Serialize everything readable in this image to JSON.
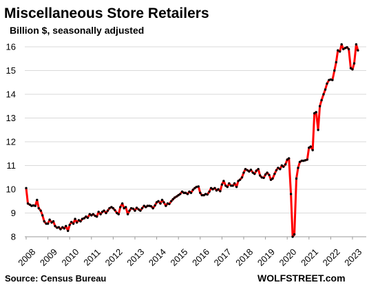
{
  "chart_data": {
    "type": "line",
    "title": "Miscellaneous  Store Retailers",
    "subtitle": "Billion $, seasonally adjusted",
    "source": "Source: Census Bureau",
    "brand": "WOLFSTREET.com",
    "ylim": [
      8,
      16.5
    ],
    "xlim": [
      2008,
      2023.3
    ],
    "yticks": [
      8,
      9,
      10,
      11,
      12,
      13,
      14,
      15,
      16
    ],
    "xticks": [
      "2008",
      "2009",
      "2010",
      "2011",
      "2012",
      "2013",
      "2014",
      "2015",
      "2016",
      "2017",
      "2018",
      "2019",
      "2020",
      "2021",
      "2022",
      "2023"
    ],
    "grid": "horizontal",
    "line_color": "#ff0000",
    "marker_color": "#000000",
    "series": [
      {
        "points": [
          [
            2008.0,
            10.05
          ],
          [
            2008.08,
            9.4
          ],
          [
            2008.17,
            9.35
          ],
          [
            2008.25,
            9.3
          ],
          [
            2008.33,
            9.32
          ],
          [
            2008.42,
            9.3
          ],
          [
            2008.5,
            9.55
          ],
          [
            2008.58,
            9.2
          ],
          [
            2008.67,
            9.1
          ],
          [
            2008.75,
            8.9
          ],
          [
            2008.83,
            8.65
          ],
          [
            2008.92,
            8.55
          ],
          [
            2009.0,
            8.55
          ],
          [
            2009.08,
            8.72
          ],
          [
            2009.17,
            8.6
          ],
          [
            2009.25,
            8.65
          ],
          [
            2009.33,
            8.45
          ],
          [
            2009.42,
            8.38
          ],
          [
            2009.5,
            8.4
          ],
          [
            2009.58,
            8.32
          ],
          [
            2009.67,
            8.4
          ],
          [
            2009.75,
            8.35
          ],
          [
            2009.83,
            8.45
          ],
          [
            2009.92,
            8.25
          ],
          [
            2010.0,
            8.5
          ],
          [
            2010.08,
            8.62
          ],
          [
            2010.17,
            8.55
          ],
          [
            2010.25,
            8.75
          ],
          [
            2010.33,
            8.6
          ],
          [
            2010.42,
            8.7
          ],
          [
            2010.5,
            8.65
          ],
          [
            2010.58,
            8.75
          ],
          [
            2010.67,
            8.78
          ],
          [
            2010.75,
            8.85
          ],
          [
            2010.83,
            8.8
          ],
          [
            2010.92,
            8.95
          ],
          [
            2011.0,
            8.9
          ],
          [
            2011.08,
            8.95
          ],
          [
            2011.17,
            8.88
          ],
          [
            2011.25,
            8.85
          ],
          [
            2011.33,
            9.05
          ],
          [
            2011.42,
            8.95
          ],
          [
            2011.5,
            9.05
          ],
          [
            2011.58,
            9.1
          ],
          [
            2011.67,
            9.0
          ],
          [
            2011.75,
            9.1
          ],
          [
            2011.83,
            9.2
          ],
          [
            2011.92,
            9.25
          ],
          [
            2012.0,
            9.2
          ],
          [
            2012.08,
            9.12
          ],
          [
            2012.17,
            9.0
          ],
          [
            2012.25,
            8.95
          ],
          [
            2012.33,
            9.25
          ],
          [
            2012.42,
            9.4
          ],
          [
            2012.5,
            9.2
          ],
          [
            2012.58,
            9.25
          ],
          [
            2012.67,
            8.95
          ],
          [
            2012.75,
            9.1
          ],
          [
            2012.83,
            9.2
          ],
          [
            2012.92,
            9.18
          ],
          [
            2013.0,
            9.1
          ],
          [
            2013.08,
            9.22
          ],
          [
            2013.17,
            9.15
          ],
          [
            2013.25,
            9.1
          ],
          [
            2013.33,
            9.2
          ],
          [
            2013.42,
            9.3
          ],
          [
            2013.5,
            9.25
          ],
          [
            2013.58,
            9.3
          ],
          [
            2013.67,
            9.3
          ],
          [
            2013.75,
            9.28
          ],
          [
            2013.83,
            9.2
          ],
          [
            2013.92,
            9.32
          ],
          [
            2014.0,
            9.45
          ],
          [
            2014.08,
            9.5
          ],
          [
            2014.17,
            9.4
          ],
          [
            2014.25,
            9.55
          ],
          [
            2014.33,
            9.45
          ],
          [
            2014.42,
            9.3
          ],
          [
            2014.5,
            9.4
          ],
          [
            2014.58,
            9.38
          ],
          [
            2014.67,
            9.5
          ],
          [
            2014.75,
            9.58
          ],
          [
            2014.83,
            9.65
          ],
          [
            2014.92,
            9.7
          ],
          [
            2015.0,
            9.75
          ],
          [
            2015.08,
            9.8
          ],
          [
            2015.17,
            9.9
          ],
          [
            2015.25,
            9.85
          ],
          [
            2015.33,
            9.85
          ],
          [
            2015.42,
            9.8
          ],
          [
            2015.5,
            9.9
          ],
          [
            2015.58,
            9.85
          ],
          [
            2015.67,
            9.98
          ],
          [
            2015.75,
            10.05
          ],
          [
            2015.83,
            10.1
          ],
          [
            2015.92,
            10.12
          ],
          [
            2016.0,
            9.85
          ],
          [
            2016.08,
            9.75
          ],
          [
            2016.17,
            9.75
          ],
          [
            2016.25,
            9.8
          ],
          [
            2016.33,
            9.78
          ],
          [
            2016.42,
            9.9
          ],
          [
            2016.5,
            10.05
          ],
          [
            2016.58,
            10.0
          ],
          [
            2016.67,
            10.05
          ],
          [
            2016.75,
            9.95
          ],
          [
            2016.83,
            10.0
          ],
          [
            2016.92,
            9.92
          ],
          [
            2017.0,
            10.2
          ],
          [
            2017.08,
            10.35
          ],
          [
            2017.17,
            10.15
          ],
          [
            2017.25,
            10.1
          ],
          [
            2017.33,
            10.25
          ],
          [
            2017.42,
            10.15
          ],
          [
            2017.5,
            10.15
          ],
          [
            2017.58,
            10.25
          ],
          [
            2017.67,
            10.1
          ],
          [
            2017.75,
            10.35
          ],
          [
            2017.83,
            10.4
          ],
          [
            2017.92,
            10.5
          ],
          [
            2018.0,
            10.7
          ],
          [
            2018.08,
            10.85
          ],
          [
            2018.17,
            10.8
          ],
          [
            2018.25,
            10.75
          ],
          [
            2018.33,
            10.82
          ],
          [
            2018.42,
            10.7
          ],
          [
            2018.5,
            10.65
          ],
          [
            2018.58,
            10.78
          ],
          [
            2018.67,
            10.85
          ],
          [
            2018.75,
            10.58
          ],
          [
            2018.83,
            10.5
          ],
          [
            2018.92,
            10.48
          ],
          [
            2019.0,
            10.62
          ],
          [
            2019.08,
            10.7
          ],
          [
            2019.17,
            10.6
          ],
          [
            2019.25,
            10.4
          ],
          [
            2019.33,
            10.45
          ],
          [
            2019.42,
            10.65
          ],
          [
            2019.5,
            10.8
          ],
          [
            2019.58,
            10.9
          ],
          [
            2019.67,
            10.85
          ],
          [
            2019.75,
            11.0
          ],
          [
            2019.83,
            10.95
          ],
          [
            2019.92,
            11.05
          ],
          [
            2020.0,
            11.25
          ],
          [
            2020.08,
            11.3
          ],
          [
            2020.17,
            9.8
          ],
          [
            2020.25,
            8.0
          ],
          [
            2020.33,
            8.1
          ],
          [
            2020.42,
            10.45
          ],
          [
            2020.5,
            10.9
          ],
          [
            2020.58,
            11.15
          ],
          [
            2020.67,
            11.2
          ],
          [
            2020.75,
            11.2
          ],
          [
            2020.83,
            11.22
          ],
          [
            2020.92,
            11.25
          ],
          [
            2021.0,
            11.75
          ],
          [
            2021.08,
            11.8
          ],
          [
            2021.17,
            11.65
          ],
          [
            2021.25,
            13.2
          ],
          [
            2021.33,
            13.25
          ],
          [
            2021.42,
            12.5
          ],
          [
            2021.5,
            13.5
          ],
          [
            2021.58,
            13.75
          ],
          [
            2021.67,
            14.0
          ],
          [
            2021.75,
            14.2
          ],
          [
            2021.83,
            14.45
          ],
          [
            2021.92,
            14.6
          ],
          [
            2022.0,
            14.62
          ],
          [
            2022.08,
            14.6
          ],
          [
            2022.17,
            15.0
          ],
          [
            2022.25,
            15.35
          ],
          [
            2022.33,
            15.85
          ],
          [
            2022.42,
            15.8
          ],
          [
            2022.5,
            16.1
          ],
          [
            2022.58,
            15.9
          ],
          [
            2022.67,
            15.95
          ],
          [
            2022.75,
            15.98
          ],
          [
            2022.83,
            15.9
          ],
          [
            2022.92,
            15.1
          ],
          [
            2023.0,
            15.05
          ],
          [
            2023.08,
            15.3
          ],
          [
            2023.17,
            16.1
          ],
          [
            2023.25,
            15.85
          ]
        ]
      }
    ]
  }
}
